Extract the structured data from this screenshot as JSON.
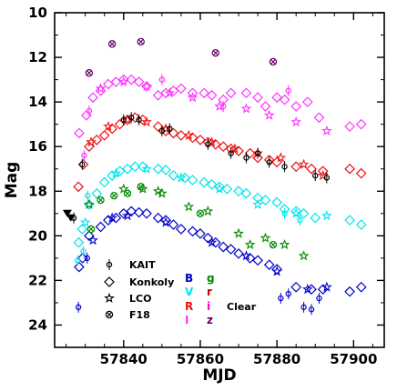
{
  "chart_data": {
    "type": "scatter",
    "title": "",
    "xlabel": "MJD",
    "ylabel": "Mag",
    "xlim": [
      57822,
      57908
    ],
    "ylim": [
      25,
      10
    ],
    "y_inverted": true,
    "xticks": [
      57840,
      57860,
      57880,
      57900
    ],
    "yticks": [
      10,
      12,
      14,
      16,
      18,
      20,
      22,
      24
    ],
    "telescope_legend": [
      {
        "label": "KAIT",
        "marker": "circle"
      },
      {
        "label": "Konkoly",
        "marker": "diamond"
      },
      {
        "label": "LCO",
        "marker": "star"
      },
      {
        "label": "F18",
        "marker": "crossed-circle"
      }
    ],
    "band_legend": [
      {
        "label": "B",
        "color": "#0000cc"
      },
      {
        "label": "V",
        "color": "#00e5ee"
      },
      {
        "label": "R",
        "color": "#ee1111"
      },
      {
        "label": "I",
        "color": "#ff33ff"
      },
      {
        "label": "g",
        "color": "#008800"
      },
      {
        "label": "r",
        "color": "#cc0000"
      },
      {
        "label": "i",
        "color": "#ff00cc"
      },
      {
        "label": "z",
        "color": "#660066"
      },
      {
        "label": "Clear",
        "color": "#000000"
      }
    ],
    "upper_limits": [
      {
        "x": 57825.3,
        "y": 19.0
      },
      {
        "x": 57826.2,
        "y": 19.2
      }
    ],
    "series": [
      {
        "band": "B",
        "marker": "diamond",
        "color": "#0000cc",
        "x": [
          57828.4,
          57829.3,
          57831,
          57834,
          57836,
          57838,
          57840,
          57842,
          57844,
          57846,
          57849,
          57851,
          57853,
          57855,
          57858,
          57860,
          57862,
          57864,
          57866,
          57868,
          57870,
          57873,
          57875,
          57878,
          57880,
          57885,
          57889,
          57892,
          57899,
          57902
        ],
        "y": [
          21.4,
          21.0,
          20.0,
          19.6,
          19.3,
          19.2,
          19.0,
          18.9,
          18.95,
          19.0,
          19.2,
          19.3,
          19.5,
          19.7,
          19.8,
          19.9,
          20.1,
          20.3,
          20.5,
          20.6,
          20.8,
          21.0,
          21.1,
          21.3,
          21.5,
          22.3,
          22.4,
          22.4,
          22.5,
          22.3
        ]
      },
      {
        "band": "B",
        "marker": "circle",
        "color": "#0000cc",
        "x": [
          57828.2,
          57830.5,
          57881,
          57883,
          57887,
          57889,
          57891
        ],
        "y": [
          23.2,
          21.0,
          22.8,
          22.6,
          23.2,
          23.3,
          22.8
        ]
      },
      {
        "band": "B",
        "marker": "star",
        "color": "#0000cc",
        "x": [
          57832,
          57837,
          57841,
          57851,
          57863,
          57872,
          57880,
          57888,
          57893
        ],
        "y": [
          20.2,
          19.2,
          19.1,
          19.4,
          20.3,
          20.9,
          21.6,
          22.4,
          22.3
        ]
      },
      {
        "band": "V",
        "marker": "diamond",
        "color": "#00e5ee",
        "x": [
          57828.3,
          57829.2,
          57831,
          57833,
          57835,
          57837,
          57839,
          57841,
          57843,
          57845,
          57849,
          57851,
          57853,
          57856,
          57858,
          57861,
          57863,
          57865,
          57867,
          57870,
          57872,
          57875,
          57877,
          57880,
          57882,
          57885,
          57887,
          57890,
          57899,
          57902
        ],
        "y": [
          20.3,
          19.7,
          18.6,
          18.1,
          17.6,
          17.3,
          17.1,
          17.0,
          16.9,
          16.9,
          17.0,
          17.05,
          17.3,
          17.4,
          17.5,
          17.6,
          17.7,
          17.8,
          17.9,
          18.0,
          18.1,
          18.3,
          18.4,
          18.5,
          18.8,
          18.9,
          19.0,
          19.2,
          19.3,
          19.5
        ]
      },
      {
        "band": "V",
        "marker": "circle",
        "color": "#00e5ee",
        "x": [
          57828,
          57829.5,
          57830.6,
          57882,
          57886
        ],
        "y": [
          21.1,
          20.7,
          18.2,
          19.0,
          19.3
        ]
      },
      {
        "band": "V",
        "marker": "star",
        "color": "#00e5ee",
        "x": [
          57830,
          57838,
          57846,
          57855,
          57865,
          57875,
          57885,
          57893
        ],
        "y": [
          19.4,
          17.2,
          17.0,
          17.4,
          17.9,
          18.6,
          19.0,
          19.1
        ]
      },
      {
        "band": "g",
        "marker": "star",
        "color": "#008800",
        "x": [
          57831,
          57840,
          57845,
          57849,
          57850,
          57857,
          57862,
          57870,
          57873,
          57877,
          57882,
          57887
        ],
        "y": [
          18.6,
          17.9,
          17.9,
          18.0,
          18.1,
          18.7,
          18.9,
          19.9,
          20.4,
          20.1,
          20.4,
          20.9
        ]
      },
      {
        "band": "g",
        "marker": "crossed-circle",
        "color": "#008800",
        "x": [
          57831.5,
          57834,
          57837.5,
          57841,
          57844.5,
          57860,
          57879
        ],
        "y": [
          19.7,
          18.4,
          18.2,
          18.1,
          17.8,
          19.0,
          20.4
        ]
      },
      {
        "band": "R",
        "marker": "diamond",
        "color": "#ee1111",
        "x": [
          57828.2,
          57829.5,
          57831,
          57833,
          57835,
          57837,
          57839,
          57841,
          57843,
          57845,
          57849,
          57851,
          57853,
          57855,
          57858,
          57860,
          57862,
          57864,
          57866,
          57868,
          57870,
          57873,
          57875,
          57878,
          57880,
          57885,
          57889,
          57892,
          57899,
          57902
        ],
        "y": [
          17.8,
          16.8,
          16.0,
          15.7,
          15.5,
          15.2,
          15.0,
          14.8,
          14.7,
          14.8,
          15.1,
          15.3,
          15.4,
          15.5,
          15.6,
          15.7,
          15.8,
          15.9,
          16.0,
          16.1,
          16.2,
          16.3,
          16.5,
          16.6,
          16.7,
          16.9,
          17.0,
          17.1,
          17.0,
          17.2
        ]
      },
      {
        "band": "R",
        "marker": "star",
        "color": "#ee1111",
        "x": [
          57831.5,
          57836,
          57841,
          57846,
          57851,
          57857,
          57863,
          57869,
          57875,
          57881,
          57887,
          57892
        ],
        "y": [
          15.8,
          15.1,
          14.8,
          14.9,
          15.2,
          15.5,
          15.8,
          16.1,
          16.3,
          16.5,
          16.8,
          17.3
        ]
      },
      {
        "band": "Clear",
        "marker": "circle",
        "color": "#000000",
        "x": [
          57827,
          57829.2,
          57840,
          57842,
          57844,
          57850,
          57852,
          57862,
          57868,
          57872,
          57875,
          57878,
          57882,
          57890,
          57893
        ],
        "y": [
          19.2,
          16.8,
          14.8,
          14.7,
          14.8,
          15.3,
          15.2,
          15.9,
          16.3,
          16.5,
          16.3,
          16.7,
          16.9,
          17.3,
          17.4
        ]
      },
      {
        "band": "i",
        "marker": "diamond",
        "color": "#ff33ff",
        "x": [
          57828.4,
          57830.3,
          57832,
          57834,
          57836,
          57838,
          57840,
          57842,
          57844,
          57846,
          57849,
          57851,
          57853,
          57855,
          57858,
          57861,
          57863,
          57866,
          57868,
          57872,
          57875,
          57877,
          57880,
          57882,
          57885,
          57888,
          57891,
          57899,
          57902
        ],
        "y": [
          15.4,
          14.6,
          13.8,
          13.5,
          13.2,
          13.1,
          13.0,
          13.0,
          13.1,
          13.3,
          13.7,
          13.6,
          13.5,
          13.4,
          13.6,
          13.6,
          13.7,
          13.9,
          13.6,
          13.6,
          13.8,
          14.2,
          13.8,
          13.9,
          14.2,
          14.0,
          14.7,
          15.1,
          15.0
        ]
      },
      {
        "band": "i",
        "marker": "circle",
        "color": "#ff33ff",
        "x": [
          57829.7,
          57831,
          57850,
          57866,
          57883
        ],
        "y": [
          16.4,
          14.4,
          13.0,
          14.2,
          13.5
        ]
      },
      {
        "band": "i",
        "marker": "star",
        "color": "#ff33ff",
        "x": [
          57834,
          57840,
          57846,
          57852,
          57858,
          57865,
          57872,
          57878,
          57885,
          57893
        ],
        "y": [
          13.4,
          13.1,
          13.3,
          13.6,
          13.8,
          14.2,
          14.3,
          14.6,
          14.9,
          15.3
        ]
      },
      {
        "band": "z",
        "marker": "crossed-circle",
        "color": "#660066",
        "x": [
          57831,
          57837,
          57844.5,
          57864,
          57879
        ],
        "y": [
          12.7,
          11.4,
          11.3,
          11.8,
          12.2
        ]
      }
    ]
  }
}
